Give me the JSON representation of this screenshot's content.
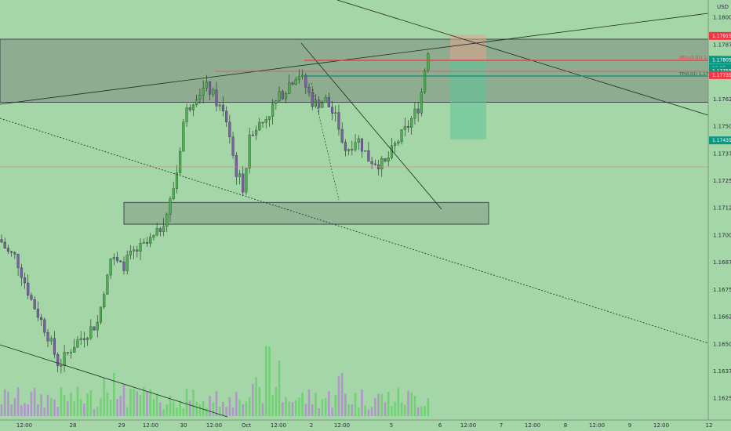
{
  "chart_data": {
    "type": "candlestick",
    "currency": "USD",
    "price_range": [
      1.1615,
      1.1808
    ],
    "y_ticks": [
      "1.18000",
      "1.17875",
      "1.17750",
      "1.17625",
      "1.17500",
      "1.17375",
      "1.17250",
      "1.17125",
      "1.17000",
      "1.16875",
      "1.16750",
      "1.16625",
      "1.16500",
      "1.16375",
      "1.16250"
    ],
    "x_ticks": [
      "12:00",
      "28",
      "29",
      "12:00",
      "30",
      "12:00",
      "Oct",
      "12:00",
      "2",
      "12:00",
      "5",
      "6",
      "12:00",
      "7",
      "12:00",
      "8",
      "12:00",
      "9",
      "12:00",
      "12"
    ],
    "price_tags": [
      {
        "value": "1.17915",
        "color": "#f23645"
      },
      {
        "value": "1.17805",
        "color": "#089981"
      },
      {
        "value": "10:25",
        "color": "#089981"
      },
      {
        "value": "1.17755",
        "color": "#089981"
      },
      {
        "value": "1.17735",
        "color": "#f23645"
      },
      {
        "value": "1.17435",
        "color": "#089981"
      }
    ],
    "line_labels": {
      "sell": "SELL(0.01) 1.17800",
      "tp": "TP(0.01) 1.17755"
    },
    "zones": [
      {
        "name": "supply-zone",
        "from": 1.1761,
        "to": 1.179
      },
      {
        "name": "demand-zone",
        "from": 1.1705,
        "to": 1.1715
      }
    ],
    "candle_count": 130,
    "colors": {
      "up": "#4caf50",
      "down": "#7b5ea7",
      "background": "#a5d6a7"
    }
  }
}
